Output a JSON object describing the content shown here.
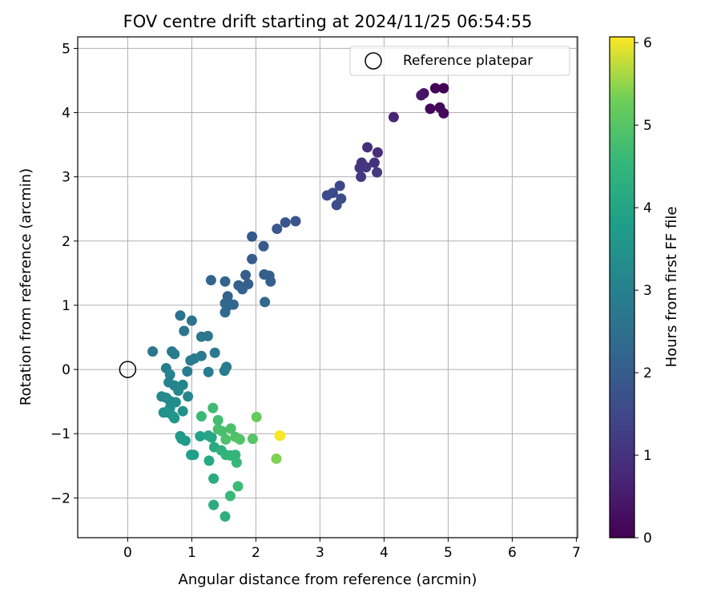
{
  "chart_data": {
    "type": "scatter",
    "title": "FOV centre drift starting at 2024/11/25 06:54:55",
    "xlabel": "Angular distance from reference (arcmin)",
    "ylabel": "Rotation from reference (arcmin)",
    "colorbar_label": "Hours from first FF file",
    "xlim": [
      -0.78,
      7.02
    ],
    "ylim": [
      -2.62,
      5.18
    ],
    "clim": [
      0,
      6.07
    ],
    "x_ticks": [
      0,
      1,
      2,
      3,
      4,
      5,
      6,
      7
    ],
    "y_ticks": [
      -2,
      -1,
      0,
      1,
      2,
      3,
      4,
      5
    ],
    "colorbar_ticks": [
      0,
      1,
      2,
      3,
      4,
      5,
      6
    ],
    "grid": true,
    "legend_position": "top-right",
    "legend": [
      "Reference platepar"
    ],
    "reference_point": {
      "x": 0,
      "y": 0,
      "name": "Reference platepar"
    },
    "colormap": "viridis",
    "points": [
      {
        "x": 4.93,
        "y": 4.38,
        "t": 0.0
      },
      {
        "x": 4.8,
        "y": 4.38,
        "t": 0.05
      },
      {
        "x": 4.72,
        "y": 4.06,
        "t": 0.1
      },
      {
        "x": 4.87,
        "y": 4.08,
        "t": 0.12
      },
      {
        "x": 4.93,
        "y": 3.99,
        "t": 0.15
      },
      {
        "x": 4.62,
        "y": 4.3,
        "t": 0.25
      },
      {
        "x": 4.58,
        "y": 4.27,
        "t": 0.4
      },
      {
        "x": 4.15,
        "y": 3.93,
        "t": 0.7
      },
      {
        "x": 3.9,
        "y": 3.38,
        "t": 0.9
      },
      {
        "x": 3.74,
        "y": 3.46,
        "t": 0.95
      },
      {
        "x": 3.85,
        "y": 3.22,
        "t": 1.0
      },
      {
        "x": 3.65,
        "y": 3.22,
        "t": 1.05
      },
      {
        "x": 3.62,
        "y": 3.14,
        "t": 1.1
      },
      {
        "x": 3.72,
        "y": 3.15,
        "t": 1.12
      },
      {
        "x": 3.89,
        "y": 3.07,
        "t": 1.15
      },
      {
        "x": 3.64,
        "y": 3.0,
        "t": 1.2
      },
      {
        "x": 3.31,
        "y": 2.86,
        "t": 1.5
      },
      {
        "x": 3.2,
        "y": 2.75,
        "t": 1.55
      },
      {
        "x": 3.11,
        "y": 2.71,
        "t": 1.6
      },
      {
        "x": 3.33,
        "y": 2.66,
        "t": 1.62
      },
      {
        "x": 3.26,
        "y": 2.56,
        "t": 1.65
      },
      {
        "x": 2.62,
        "y": 2.31,
        "t": 1.8
      },
      {
        "x": 2.46,
        "y": 2.29,
        "t": 1.82
      },
      {
        "x": 2.33,
        "y": 2.19,
        "t": 1.85
      },
      {
        "x": 1.94,
        "y": 2.07,
        "t": 1.9
      },
      {
        "x": 2.12,
        "y": 1.92,
        "t": 1.92
      },
      {
        "x": 1.94,
        "y": 1.72,
        "t": 1.95
      },
      {
        "x": 1.84,
        "y": 1.47,
        "t": 2.0
      },
      {
        "x": 2.13,
        "y": 1.48,
        "t": 2.02
      },
      {
        "x": 2.21,
        "y": 1.46,
        "t": 2.03
      },
      {
        "x": 2.23,
        "y": 1.37,
        "t": 2.05
      },
      {
        "x": 1.88,
        "y": 1.33,
        "t": 2.07
      },
      {
        "x": 1.73,
        "y": 1.31,
        "t": 2.1
      },
      {
        "x": 1.79,
        "y": 1.25,
        "t": 2.12
      },
      {
        "x": 1.56,
        "y": 1.14,
        "t": 2.15
      },
      {
        "x": 1.52,
        "y": 1.37,
        "t": 2.18
      },
      {
        "x": 1.3,
        "y": 1.39,
        "t": 2.2
      },
      {
        "x": 1.52,
        "y": 1.03,
        "t": 2.22
      },
      {
        "x": 1.65,
        "y": 1.01,
        "t": 2.25
      },
      {
        "x": 2.14,
        "y": 1.05,
        "t": 2.3
      },
      {
        "x": 1.55,
        "y": 0.98,
        "t": 2.32
      },
      {
        "x": 1.52,
        "y": 0.89,
        "t": 2.35
      },
      {
        "x": 0.82,
        "y": 0.84,
        "t": 2.6
      },
      {
        "x": 1.0,
        "y": 0.76,
        "t": 2.62
      },
      {
        "x": 0.88,
        "y": 0.6,
        "t": 2.65
      },
      {
        "x": 1.15,
        "y": 0.51,
        "t": 2.7
      },
      {
        "x": 1.25,
        "y": 0.52,
        "t": 2.72
      },
      {
        "x": 0.39,
        "y": 0.28,
        "t": 2.75
      },
      {
        "x": 0.69,
        "y": 0.28,
        "t": 2.8
      },
      {
        "x": 0.73,
        "y": 0.24,
        "t": 2.82
      },
      {
        "x": 1.36,
        "y": 0.26,
        "t": 2.78
      },
      {
        "x": 1.15,
        "y": 0.21,
        "t": 2.77
      },
      {
        "x": 1.04,
        "y": 0.17,
        "t": 2.83
      },
      {
        "x": 0.98,
        "y": 0.14,
        "t": 2.85
      },
      {
        "x": 1.54,
        "y": 0.04,
        "t": 2.8
      },
      {
        "x": 1.51,
        "y": -0.02,
        "t": 2.86
      },
      {
        "x": 1.26,
        "y": -0.04,
        "t": 2.88
      },
      {
        "x": 0.93,
        "y": -0.03,
        "t": 2.9
      },
      {
        "x": 0.6,
        "y": 0.02,
        "t": 2.95
      },
      {
        "x": 0.66,
        "y": -0.08,
        "t": 3.0
      },
      {
        "x": 0.64,
        "y": -0.2,
        "t": 3.05
      },
      {
        "x": 0.73,
        "y": -0.25,
        "t": 3.1
      },
      {
        "x": 0.86,
        "y": -0.24,
        "t": 3.12
      },
      {
        "x": 0.79,
        "y": -0.33,
        "t": 3.15
      },
      {
        "x": 0.94,
        "y": -0.42,
        "t": 3.18
      },
      {
        "x": 0.53,
        "y": -0.42,
        "t": 3.2
      },
      {
        "x": 0.6,
        "y": -0.44,
        "t": 3.25
      },
      {
        "x": 0.66,
        "y": -0.49,
        "t": 3.3
      },
      {
        "x": 0.75,
        "y": -0.51,
        "t": 3.32
      },
      {
        "x": 0.66,
        "y": -0.6,
        "t": 3.35
      },
      {
        "x": 0.86,
        "y": -0.65,
        "t": 3.4
      },
      {
        "x": 0.56,
        "y": -0.67,
        "t": 3.45
      },
      {
        "x": 0.62,
        "y": -0.67,
        "t": 3.5
      },
      {
        "x": 0.71,
        "y": -0.73,
        "t": 3.55
      },
      {
        "x": 0.73,
        "y": -0.76,
        "t": 3.6
      },
      {
        "x": 0.82,
        "y": -1.04,
        "t": 3.65
      },
      {
        "x": 0.84,
        "y": -1.08,
        "t": 3.7
      },
      {
        "x": 0.9,
        "y": -1.11,
        "t": 3.75
      },
      {
        "x": 0.99,
        "y": -1.33,
        "t": 3.8
      },
      {
        "x": 1.03,
        "y": -1.33,
        "t": 3.85
      },
      {
        "x": 1.13,
        "y": -1.04,
        "t": 3.9
      },
      {
        "x": 1.26,
        "y": -1.03,
        "t": 4.0
      },
      {
        "x": 1.31,
        "y": -1.06,
        "t": 4.05
      },
      {
        "x": 1.27,
        "y": -1.42,
        "t": 4.1
      },
      {
        "x": 1.35,
        "y": -1.21,
        "t": 4.15
      },
      {
        "x": 1.34,
        "y": -1.7,
        "t": 4.2
      },
      {
        "x": 1.34,
        "y": -2.11,
        "t": 4.25
      },
      {
        "x": 1.52,
        "y": -2.29,
        "t": 4.3
      },
      {
        "x": 1.46,
        "y": -1.26,
        "t": 4.35
      },
      {
        "x": 1.53,
        "y": -1.33,
        "t": 4.4
      },
      {
        "x": 1.6,
        "y": -1.34,
        "t": 4.45
      },
      {
        "x": 1.68,
        "y": -1.33,
        "t": 4.5
      },
      {
        "x": 1.7,
        "y": -1.45,
        "t": 4.55
      },
      {
        "x": 1.6,
        "y": -1.97,
        "t": 4.6
      },
      {
        "x": 1.72,
        "y": -1.82,
        "t": 4.65
      },
      {
        "x": 1.15,
        "y": -0.73,
        "t": 4.6
      },
      {
        "x": 1.33,
        "y": -0.6,
        "t": 4.7
      },
      {
        "x": 1.41,
        "y": -0.79,
        "t": 4.75
      },
      {
        "x": 1.41,
        "y": -0.93,
        "t": 4.8
      },
      {
        "x": 1.47,
        "y": -0.96,
        "t": 4.82
      },
      {
        "x": 1.61,
        "y": -0.92,
        "t": 4.85
      },
      {
        "x": 1.53,
        "y": -1.09,
        "t": 4.87
      },
      {
        "x": 1.68,
        "y": -1.05,
        "t": 4.9
      },
      {
        "x": 1.75,
        "y": -1.09,
        "t": 4.95
      },
      {
        "x": 1.95,
        "y": -1.08,
        "t": 5.0
      },
      {
        "x": 2.01,
        "y": -0.74,
        "t": 5.2
      },
      {
        "x": 2.32,
        "y": -1.39,
        "t": 5.4
      },
      {
        "x": 2.37,
        "y": -1.03,
        "t": 6.0
      },
      {
        "x": 2.38,
        "y": -1.03,
        "t": 6.05
      }
    ]
  }
}
